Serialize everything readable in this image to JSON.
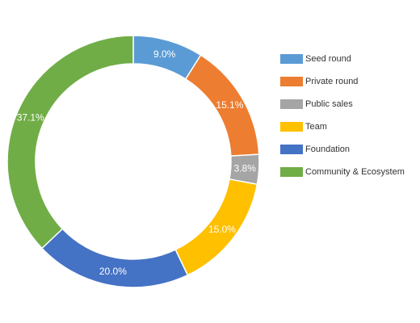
{
  "chart_data": {
    "type": "pie",
    "variant": "donut",
    "title": "",
    "legend_position": "right",
    "slices": [
      {
        "label": "Seed round",
        "value": 9.0,
        "value_label": "9.0%",
        "color": "#5b9bd5"
      },
      {
        "label": "Private round",
        "value": 15.1,
        "value_label": "15.1%",
        "color": "#ed7d31"
      },
      {
        "label": "Public sales",
        "value": 3.8,
        "value_label": "3.8%",
        "color": "#a5a5a5"
      },
      {
        "label": "Team",
        "value": 15.0,
        "value_label": "15.0%",
        "color": "#ffc000"
      },
      {
        "label": "Foundation",
        "value": 20.0,
        "value_label": "20.0%",
        "color": "#4472c4"
      },
      {
        "label": "Community & Ecosystem",
        "value": 37.1,
        "value_label": "37.1%",
        "color": "#70ad47"
      }
    ]
  }
}
